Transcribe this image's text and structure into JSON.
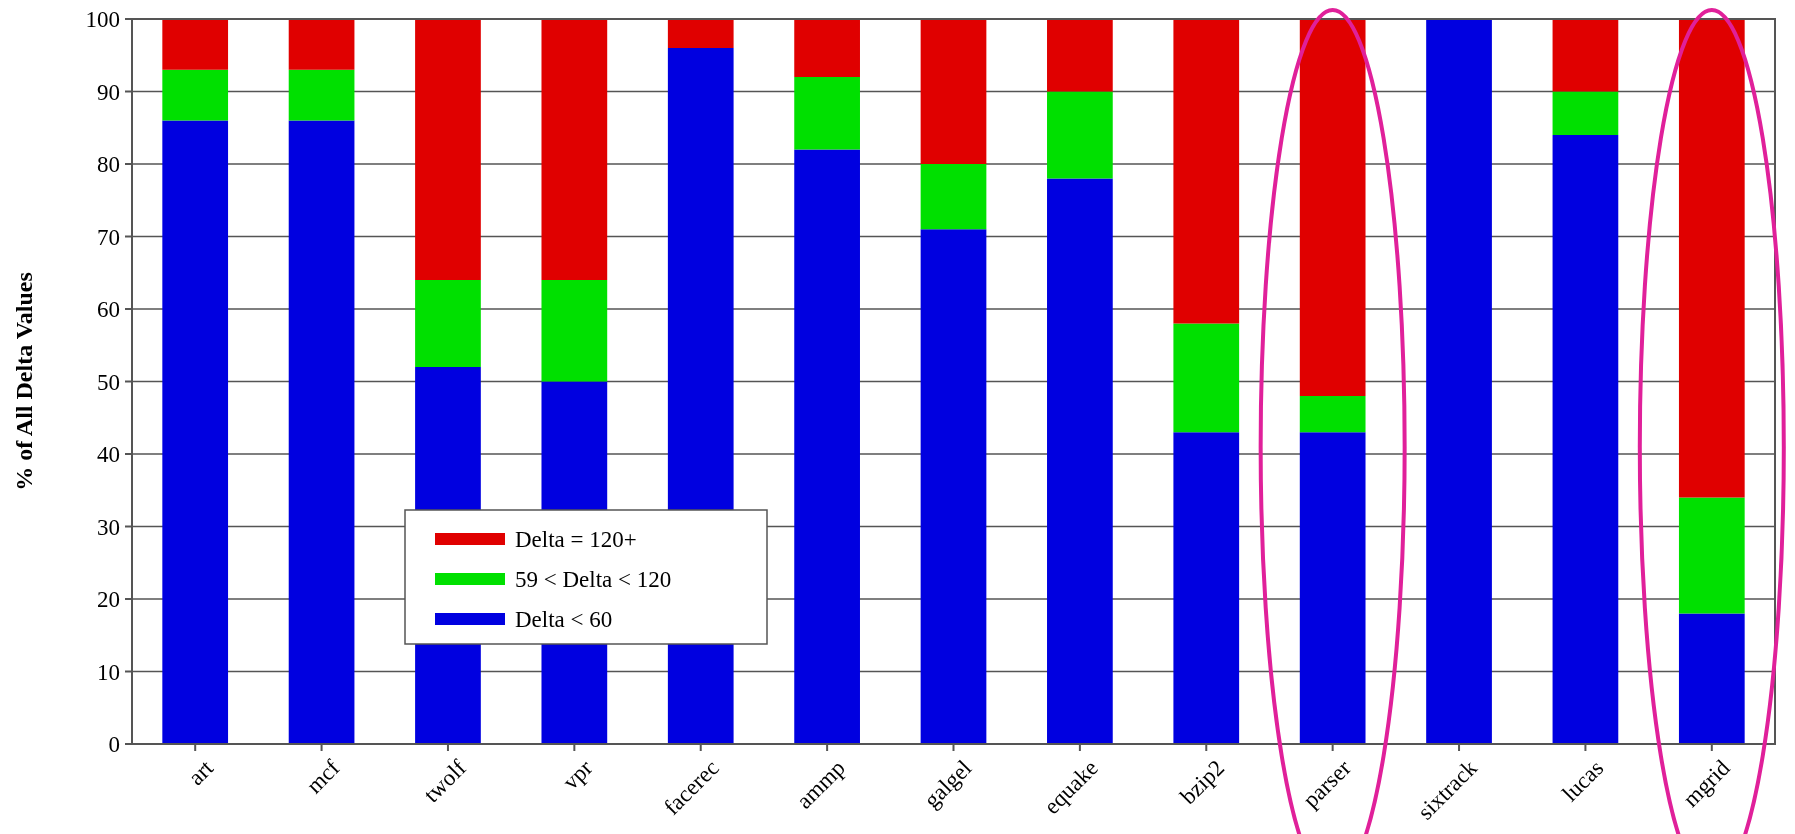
{
  "chart_data": {
    "type": "bar",
    "stacked": true,
    "ylabel": "% of All Delta Values",
    "categories": [
      "art",
      "mcf",
      "twolf",
      "vpr",
      "facerec",
      "ammp",
      "galgel",
      "equake",
      "bzip2",
      "parser",
      "sixtrack",
      "lucas",
      "mgrid"
    ],
    "series": [
      {
        "name": "Delta < 60",
        "color": "#0000e0",
        "values": [
          86,
          86,
          52,
          50,
          96,
          82,
          71,
          78,
          43,
          43,
          100,
          84,
          18
        ]
      },
      {
        "name": "59 < Delta < 120",
        "color": "#00e000",
        "values": [
          7,
          7,
          12,
          14,
          0,
          10,
          9,
          12,
          15,
          5,
          0,
          6,
          16
        ]
      },
      {
        "name": "Delta = 120+",
        "color": "#e00000",
        "values": [
          7,
          7,
          36,
          36,
          4,
          8,
          20,
          10,
          42,
          52,
          0,
          10,
          66
        ]
      }
    ],
    "ylim": [
      0,
      100
    ],
    "yticks": [
      0,
      10,
      20,
      30,
      40,
      50,
      60,
      70,
      80,
      90,
      100
    ],
    "grid": "y",
    "legend": "bottom left"
  }
}
